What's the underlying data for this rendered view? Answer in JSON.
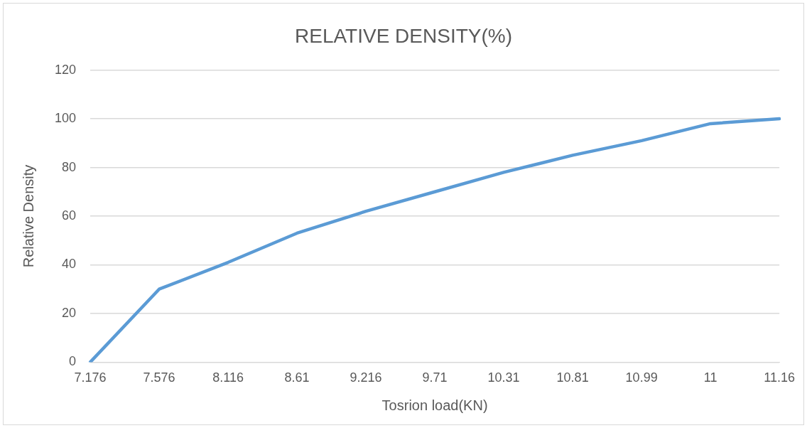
{
  "chart_data": {
    "type": "line",
    "title": "RELATIVE DENSITY(%)",
    "xlabel": "Tosrion load(KN)",
    "ylabel": "Relative Density",
    "categories": [
      "7.176",
      "7.576",
      "8.116",
      "8.61",
      "9.216",
      "9.71",
      "10.31",
      "10.81",
      "10.99",
      "11",
      "11.16"
    ],
    "series": [
      {
        "color": "#5b9bd5",
        "values": [
          0,
          30,
          41,
          53,
          62,
          70,
          78,
          85,
          91,
          98,
          100
        ]
      }
    ],
    "ylim": [
      0,
      120
    ],
    "yticks": [
      0,
      20,
      40,
      60,
      80,
      100,
      120
    ],
    "grid": "y",
    "legend": false,
    "marker": "none",
    "line_style": "solid"
  }
}
